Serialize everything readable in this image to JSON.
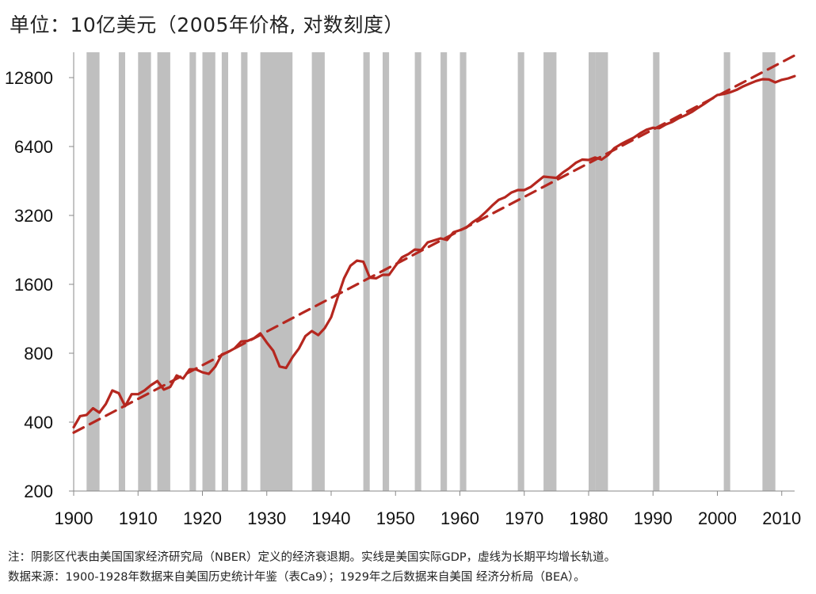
{
  "header": {
    "unit_text": "单位：10亿美元（2005年价格, 对数刻度）"
  },
  "notes": {
    "line1": "注：阴影区代表由美国国家经济研究局（NBER）定义的经济衰退期。实线是美国实际GDP，虚线为长期平均增长轨道。",
    "line2": "数据来源：1900-1928年数据来自美国历史统计年鉴（表Ca9）；1929年之后数据来自美国 经济分析局（BEA）。"
  },
  "chart_data": {
    "type": "line",
    "title": "",
    "xlabel": "",
    "ylabel": "单位：10亿美元（2005年价格, 对数刻度）",
    "xlim": [
      1900,
      2012
    ],
    "ylim": [
      200,
      16500
    ],
    "y_scale": "log2",
    "grid": false,
    "x_ticks": [
      1900,
      1910,
      1920,
      1930,
      1940,
      1950,
      1960,
      1970,
      1980,
      1990,
      2000,
      2010
    ],
    "y_ticks": [
      200,
      400,
      800,
      1600,
      3200,
      6400,
      12800
    ],
    "colors": {
      "gdp_line": "#B5271F",
      "trend_line": "#B5271F",
      "recession_shade": "#BFBFBF",
      "axis": "#888888"
    },
    "recessions": [
      [
        1902,
        1904
      ],
      [
        1907,
        1908
      ],
      [
        1910,
        1912
      ],
      [
        1913,
        1915
      ],
      [
        1918,
        1919
      ],
      [
        1920,
        1922
      ],
      [
        1923,
        1924
      ],
      [
        1926,
        1927
      ],
      [
        1929,
        1934
      ],
      [
        1937,
        1939
      ],
      [
        1945,
        1946
      ],
      [
        1948,
        1949
      ],
      [
        1953,
        1954
      ],
      [
        1957,
        1958
      ],
      [
        1960,
        1961
      ],
      [
        1969,
        1970
      ],
      [
        1973,
        1975
      ],
      [
        1980,
        1981
      ],
      [
        1981,
        1983
      ],
      [
        1990,
        1991
      ],
      [
        2001,
        2002
      ],
      [
        2007,
        2009
      ]
    ],
    "series": [
      {
        "style": "solid",
        "x": [
          1900,
          1901,
          1902,
          1903,
          1904,
          1905,
          1906,
          1907,
          1908,
          1909,
          1910,
          1911,
          1912,
          1913,
          1914,
          1915,
          1916,
          1917,
          1918,
          1919,
          1920,
          1921,
          1922,
          1923,
          1924,
          1925,
          1926,
          1927,
          1928,
          1929,
          1930,
          1931,
          1932,
          1933,
          1934,
          1935,
          1936,
          1937,
          1938,
          1939,
          1940,
          1941,
          1942,
          1943,
          1944,
          1945,
          1946,
          1947,
          1948,
          1949,
          1950,
          1951,
          1952,
          1953,
          1954,
          1955,
          1956,
          1957,
          1958,
          1959,
          1960,
          1961,
          1962,
          1963,
          1964,
          1965,
          1966,
          1967,
          1968,
          1969,
          1970,
          1971,
          1972,
          1973,
          1974,
          1975,
          1976,
          1977,
          1978,
          1979,
          1980,
          1981,
          1982,
          1983,
          1984,
          1985,
          1986,
          1987,
          1988,
          1989,
          1990,
          1991,
          1992,
          1993,
          1994,
          1995,
          1996,
          1997,
          1998,
          1999,
          2000,
          2001,
          2002,
          2003,
          2004,
          2005,
          2006,
          2007,
          2008,
          2009,
          2010,
          2011,
          2012
        ],
        "values": [
          380,
          425,
          430,
          460,
          440,
          480,
          550,
          535,
          470,
          530,
          530,
          550,
          580,
          605,
          555,
          570,
          640,
          620,
          680,
          680,
          660,
          650,
          700,
          790,
          810,
          840,
          900,
          905,
          930,
          977,
          890,
          820,
          700,
          690,
          770,
          840,
          950,
          1000,
          960,
          1030,
          1150,
          1400,
          1700,
          1930,
          2030,
          2010,
          1710,
          1700,
          1760,
          1760,
          1930,
          2100,
          2170,
          2270,
          2260,
          2440,
          2490,
          2540,
          2500,
          2700,
          2760,
          2830,
          2990,
          3120,
          3310,
          3530,
          3740,
          3840,
          4030,
          4130,
          4130,
          4260,
          4490,
          4730,
          4700,
          4670,
          4930,
          5150,
          5430,
          5610,
          5590,
          5730,
          5610,
          5870,
          6300,
          6550,
          6780,
          7000,
          7310,
          7580,
          7730,
          7700,
          7990,
          8200,
          8520,
          8750,
          9050,
          9450,
          9850,
          10300,
          10750,
          10850,
          11050,
          11320,
          11720,
          12050,
          12370,
          12600,
          12570,
          12200,
          12520,
          12700,
          13000
        ]
      },
      {
        "style": "dashed",
        "x": [
          1900,
          2012
        ],
        "values": [
          360,
          16000
        ]
      }
    ]
  }
}
